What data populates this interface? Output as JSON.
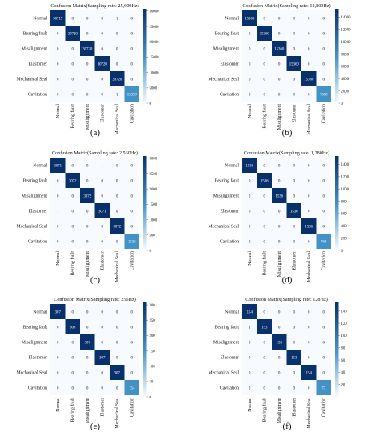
{
  "chart_data": [
    {
      "type": "heatmap",
      "panel_label": "(a)",
      "title": "Confusion Matrix(Sampling rate: 25,600Hz)",
      "rows": [
        "Normal",
        "Bearing fault",
        "Misalignment",
        "Elastomer",
        "Mechanical Seal",
        "Cavitation"
      ],
      "cols": [
        "Normal",
        "Bearing fault",
        "Misalignment",
        "Elastomer",
        "Mechanical Seal",
        "Cavitation"
      ],
      "matrix": [
        [
          30719,
          0,
          0,
          0,
          1,
          0
        ],
        [
          0,
          30720,
          0,
          0,
          0,
          0
        ],
        [
          0,
          0,
          30720,
          0,
          0,
          0
        ],
        [
          0,
          0,
          0,
          30720,
          0,
          0
        ],
        [
          0,
          0,
          0,
          0,
          30720,
          0
        ],
        [
          0,
          0,
          0,
          0,
          1,
          15359
        ]
      ],
      "colorbar_ticks": [
        "30000",
        "25000",
        "20000",
        "15000",
        "10000",
        "5000",
        "0"
      ],
      "colorbar_max": 30720
    },
    {
      "type": "heatmap",
      "panel_label": "(b)",
      "title": "Confusion Matrix(Sampling rate: 12,800Hz)",
      "rows": [
        "Normal",
        "Bearing fault",
        "Misalignment",
        "Elastomer",
        "Mechanical Seal",
        "Cavitation"
      ],
      "cols": [
        "Normal",
        "Bearing fault",
        "Misalignment",
        "Elastomer",
        "Mechanical Seal",
        "Cavitation"
      ],
      "matrix": [
        [
          15360,
          0,
          0,
          0,
          0,
          0
        ],
        [
          0,
          15360,
          0,
          0,
          0,
          0
        ],
        [
          0,
          0,
          15360,
          0,
          0,
          0
        ],
        [
          0,
          0,
          0,
          15360,
          0,
          0
        ],
        [
          0,
          0,
          0,
          0,
          15360,
          0
        ],
        [
          0,
          0,
          0,
          0,
          0,
          7680
        ]
      ],
      "colorbar_ticks": [
        "14000",
        "12000",
        "10000",
        "8000",
        "6000",
        "4000",
        "2000",
        "0"
      ],
      "colorbar_max": 15360
    },
    {
      "type": "heatmap",
      "panel_label": "(c)",
      "title": "Confusion Matrix(Sampling rate: 2,560Hz)",
      "rows": [
        "Normal",
        "Bearing fault",
        "Misalignment",
        "Elastomer",
        "Mechanical Seal",
        "Cavitation"
      ],
      "cols": [
        "Normal",
        "Bearing fault",
        "Misalignment",
        "Elastomer",
        "Mechanical Seal",
        "Cavitation"
      ],
      "matrix": [
        [
          3071,
          0,
          0,
          1,
          0,
          0
        ],
        [
          0,
          3072,
          0,
          0,
          0,
          0
        ],
        [
          0,
          0,
          3072,
          0,
          0,
          0
        ],
        [
          1,
          0,
          0,
          3071,
          0,
          0
        ],
        [
          0,
          0,
          0,
          0,
          3072,
          0
        ],
        [
          0,
          0,
          0,
          0,
          0,
          1536
        ]
      ],
      "colorbar_ticks": [
        "3000",
        "2500",
        "2000",
        "1500",
        "1000",
        "500",
        "0"
      ],
      "colorbar_max": 3072
    },
    {
      "type": "heatmap",
      "panel_label": "(d)",
      "title": "Confusion Matrix(Sampling rate: 1,280Hz)",
      "rows": [
        "Normal",
        "Bearing fault",
        "Misalignment",
        "Elastomer",
        "Mechanical Seal",
        "Cavitation"
      ],
      "cols": [
        "Normal",
        "Bearing fault",
        "Misalignment",
        "Elastomer",
        "Mechanical Seal",
        "Cavitation"
      ],
      "matrix": [
        [
          1536,
          0,
          0,
          0,
          0,
          0
        ],
        [
          0,
          1536,
          0,
          0,
          0,
          0
        ],
        [
          0,
          0,
          1536,
          0,
          0,
          0
        ],
        [
          0,
          0,
          0,
          1536,
          0,
          0
        ],
        [
          0,
          0,
          0,
          0,
          1536,
          0
        ],
        [
          0,
          0,
          0,
          0,
          0,
          768
        ]
      ],
      "colorbar_ticks": [
        "1400",
        "1200",
        "1000",
        "800",
        "600",
        "400",
        "200",
        "0"
      ],
      "colorbar_max": 1536
    },
    {
      "type": "heatmap",
      "panel_label": "(e)",
      "title": "Confusion Matrix(Sampling rate: 256Hz)",
      "rows": [
        "Normal",
        "Bearing fault",
        "Misalignment",
        "Elastomer",
        "Mechanical Seal",
        "Cavitation"
      ],
      "cols": [
        "Normal",
        "Bearing fault",
        "Misalignment",
        "Elastomer",
        "Mechanical Seal",
        "Cavitation"
      ],
      "matrix": [
        [
          307,
          0,
          0,
          0,
          0,
          0
        ],
        [
          0,
          308,
          0,
          0,
          0,
          0
        ],
        [
          0,
          0,
          307,
          0,
          0,
          0
        ],
        [
          0,
          0,
          0,
          307,
          0,
          0
        ],
        [
          0,
          0,
          0,
          0,
          307,
          0
        ],
        [
          0,
          0,
          0,
          0,
          0,
          154
        ]
      ],
      "colorbar_ticks": [
        "300",
        "250",
        "200",
        "150",
        "100",
        "50",
        "0"
      ],
      "colorbar_max": 308
    },
    {
      "type": "heatmap",
      "panel_label": "(f)",
      "title": "Confusion Matrix(Sampling rate: 128Hz)",
      "rows": [
        "Normal",
        "Bearing fault",
        "Misalignment",
        "Elastomer",
        "Mechanical Seal",
        "Cavitation"
      ],
      "cols": [
        "Normal",
        "Bearing fault",
        "Misalignment",
        "Elastomer",
        "Mechanical Seal",
        "Cavitation"
      ],
      "matrix": [
        [
          154,
          0,
          0,
          0,
          0,
          0
        ],
        [
          1,
          153,
          0,
          0,
          0,
          0
        ],
        [
          0,
          0,
          153,
          0,
          0,
          0
        ],
        [
          0,
          0,
          0,
          153,
          0,
          0
        ],
        [
          0,
          0,
          0,
          0,
          154,
          0
        ],
        [
          0,
          0,
          0,
          0,
          0,
          77
        ]
      ],
      "colorbar_ticks": [
        "140",
        "120",
        "100",
        "80",
        "60",
        "40",
        "20"
      ],
      "colorbar_max": 154
    }
  ],
  "colors": {
    "cell_high": "#08306b",
    "cell_mid": "#4292c6",
    "cell_low": "#f7fbff",
    "text_dark": "#111111",
    "text_light": "#ffffff"
  }
}
